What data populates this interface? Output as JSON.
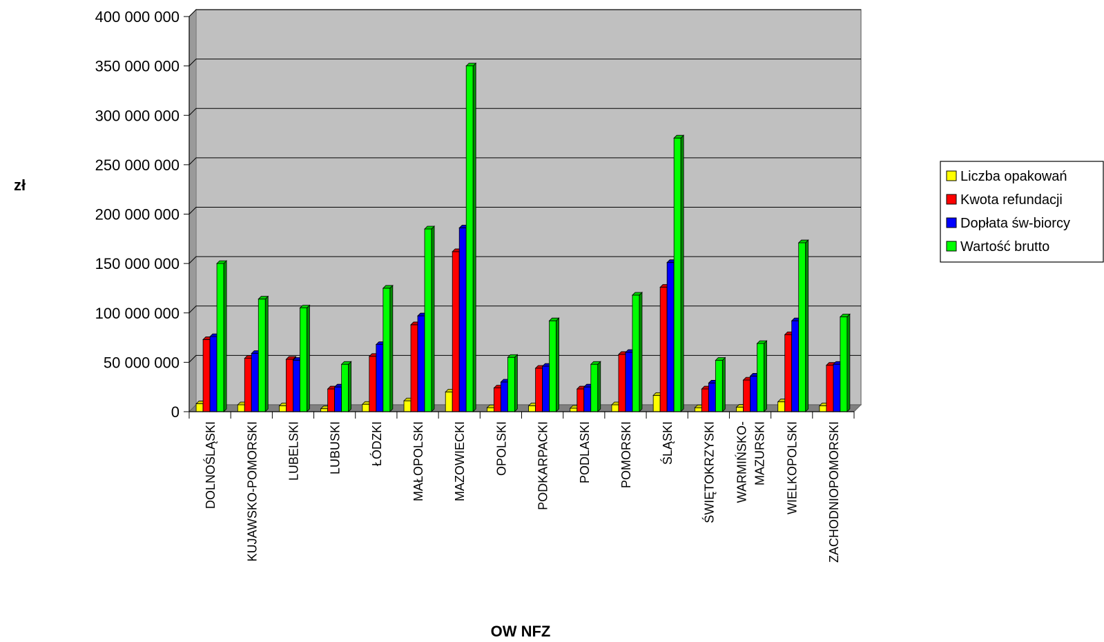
{
  "chart_data": {
    "type": "bar",
    "xlabel": "OW NFZ",
    "ylabel": "zł",
    "ylim": [
      0,
      400000000
    ],
    "ytick_values": [
      0,
      50000000,
      100000000,
      150000000,
      200000000,
      250000000,
      300000000,
      350000000,
      400000000
    ],
    "ytick_labels": [
      "0",
      "50 000 000",
      "100 000 000",
      "150 000 000",
      "200 000 000",
      "250 000 000",
      "300 000 000",
      "350 000 000",
      "400 000 000"
    ],
    "categories": [
      "DOLNOŚLĄSKI",
      "KUJAWSKO-POMORSKI",
      "LUBELSKI",
      "LUBUSKI",
      "ŁÓDZKI",
      "MAŁOPOLSKI",
      "MAZOWIECKI",
      "OPOLSKI",
      "PODKARPACKI",
      "PODLASKI",
      "POMORSKI",
      "ŚLĄSKI",
      "ŚWIĘTOKRZYSKI",
      "WARMIŃSKO-MAZURSKI",
      "WIELKOPOLSKI",
      "ZACHODNIOPOMORSKI"
    ],
    "category_lines": [
      [
        "DOLNOŚLĄSKI"
      ],
      [
        "KUJAWSKO-POMORSKI"
      ],
      [
        "LUBELSKI"
      ],
      [
        "LUBUSKI"
      ],
      [
        "ŁÓDZKI"
      ],
      [
        "MAŁOPOLSKI"
      ],
      [
        "MAZOWIECKI"
      ],
      [
        "OPOLSKI"
      ],
      [
        "PODKARPACKI"
      ],
      [
        "PODLASKI"
      ],
      [
        "POMORSKI"
      ],
      [
        "ŚLĄSKI"
      ],
      [
        "ŚWIĘTOKRZYSKI"
      ],
      [
        "WARMIŃSKO-",
        "MAZURSKI"
      ],
      [
        "WIELKOPOLSKI"
      ],
      [
        "ZACHODNIOPOMORSKI"
      ]
    ],
    "series": [
      {
        "name": "Liczba opakowań",
        "color": "#FFFF00",
        "values": [
          8000000,
          7000000,
          6000000,
          3000000,
          7500000,
          11000000,
          20000000,
          4000000,
          6000000,
          3500000,
          7000000,
          16500000,
          4000000,
          4500000,
          10000000,
          6000000
        ]
      },
      {
        "name": "Kwota refundacji",
        "color": "#FF0000",
        "values": [
          73000000,
          54000000,
          53000000,
          23000000,
          56000000,
          88000000,
          162000000,
          24000000,
          44000000,
          23000000,
          58000000,
          126000000,
          23000000,
          32000000,
          78000000,
          47000000
        ]
      },
      {
        "name": "Dopłata św-biorcy",
        "color": "#0000FF",
        "values": [
          76000000,
          59000000,
          52000000,
          25000000,
          68000000,
          97000000,
          186000000,
          30000000,
          46000000,
          25000000,
          60000000,
          151000000,
          29000000,
          36000000,
          92000000,
          48000000
        ]
      },
      {
        "name": "Wartość brutto",
        "color": "#00FF00",
        "values": [
          150000000,
          114000000,
          105000000,
          48000000,
          125000000,
          185000000,
          350000000,
          55000000,
          92000000,
          48000000,
          118000000,
          277000000,
          52000000,
          69000000,
          171000000,
          96000000
        ]
      }
    ],
    "legend_position": "right",
    "grid": true,
    "plot_background": "#C0C0C0"
  }
}
